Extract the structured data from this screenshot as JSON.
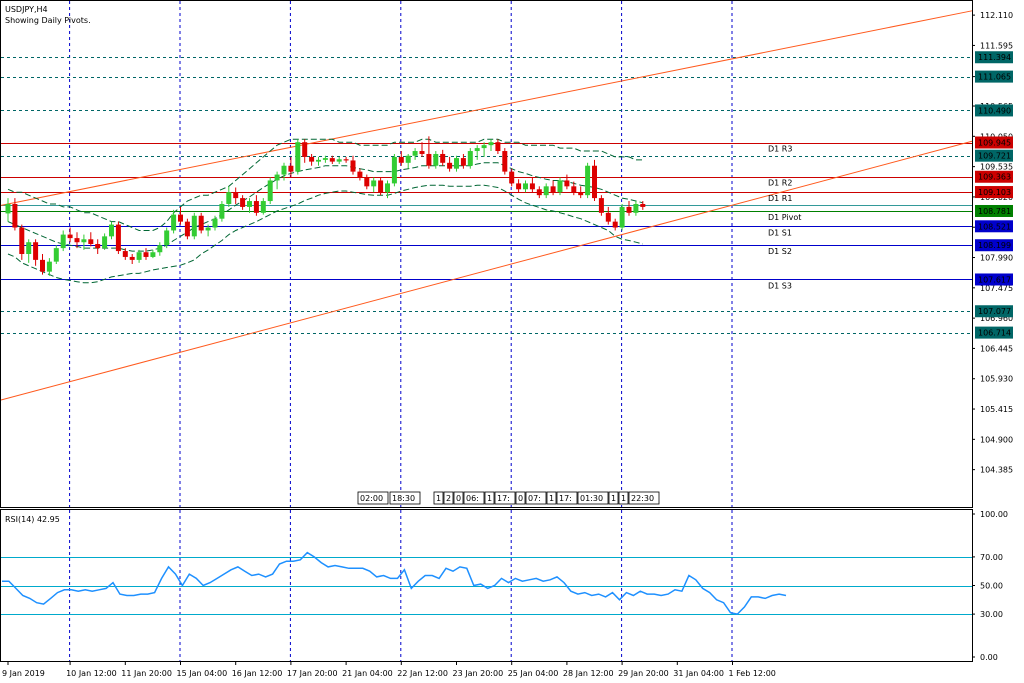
{
  "header": {
    "symbol_title": "USDJPY,H4",
    "subtitle": "Showing Daily Pivots."
  },
  "rsi_label": "RSI(14) 42.95",
  "chart_data": {
    "type": "candlestick",
    "price_axis": {
      "range": [
        103.75,
        112.35
      ],
      "tick_labels": [
        "112.110",
        "111.595",
        "111.065",
        "110.565",
        "110.050",
        "109.535",
        "109.020",
        "108.505",
        "107.990",
        "107.475",
        "106.960",
        "106.445",
        "105.930",
        "105.415",
        "104.900",
        "104.385"
      ]
    },
    "rsi_axis": {
      "range": [
        0,
        100
      ],
      "tick_labels": [
        "100.00",
        "70.00",
        "50.00",
        "30.00",
        "0.00"
      ],
      "levels": [
        70,
        50,
        30
      ]
    },
    "x_axis": {
      "tick_labels": [
        {
          "label": "9 Jan 2019",
          "bar": 0
        },
        {
          "label": "10 Jan 12:00",
          "bar": 9
        },
        {
          "label": "11 Jan 20:00",
          "bar": 17
        },
        {
          "label": "15 Jan 04:00",
          "bar": 25
        },
        {
          "label": "16 Jan 12:00",
          "bar": 33
        },
        {
          "label": "17 Jan 20:00",
          "bar": 41
        },
        {
          "label": "21 Jan 04:00",
          "bar": 49
        },
        {
          "label": "22 Jan 12:00",
          "bar": 57
        },
        {
          "label": "23 Jan 20:00",
          "bar": 65
        },
        {
          "label": "25 Jan 04:00",
          "bar": 73
        },
        {
          "label": "28 Jan 12:00",
          "bar": 81
        },
        {
          "label": "29 Jan 20:00",
          "bar": 89
        },
        {
          "label": "31 Jan 04:00",
          "bar": 97
        },
        {
          "label": "1 Feb 12:00",
          "bar": 105
        }
      ],
      "time_markers": [
        "02:00",
        "18:30",
        "1",
        "2",
        "0",
        "06:",
        "1",
        "17:",
        "0",
        "07:",
        "1",
        "17:",
        "01:30",
        "1",
        "1",
        "22:30"
      ]
    },
    "candles": [
      {
        "o": 108.74,
        "h": 109.0,
        "l": 108.6,
        "c": 108.9
      },
      {
        "o": 108.9,
        "h": 109.0,
        "l": 108.45,
        "c": 108.5
      },
      {
        "o": 108.5,
        "h": 108.55,
        "l": 107.95,
        "c": 108.05
      },
      {
        "o": 108.05,
        "h": 108.3,
        "l": 107.9,
        "c": 108.25
      },
      {
        "o": 108.25,
        "h": 108.3,
        "l": 107.85,
        "c": 107.95
      },
      {
        "o": 107.95,
        "h": 108.05,
        "l": 107.7,
        "c": 107.75
      },
      {
        "o": 107.75,
        "h": 107.98,
        "l": 107.68,
        "c": 107.92
      },
      {
        "o": 107.92,
        "h": 108.2,
        "l": 107.88,
        "c": 108.15
      },
      {
        "o": 108.15,
        "h": 108.45,
        "l": 108.1,
        "c": 108.38
      },
      {
        "o": 108.38,
        "h": 108.5,
        "l": 108.25,
        "c": 108.32
      },
      {
        "o": 108.32,
        "h": 108.42,
        "l": 108.15,
        "c": 108.25
      },
      {
        "o": 108.25,
        "h": 108.38,
        "l": 108.12,
        "c": 108.3
      },
      {
        "o": 108.3,
        "h": 108.42,
        "l": 108.18,
        "c": 108.22
      },
      {
        "o": 108.22,
        "h": 108.3,
        "l": 108.05,
        "c": 108.15
      },
      {
        "o": 108.15,
        "h": 108.4,
        "l": 108.12,
        "c": 108.35
      },
      {
        "o": 108.35,
        "h": 108.6,
        "l": 108.3,
        "c": 108.55
      },
      {
        "o": 108.55,
        "h": 108.6,
        "l": 108.05,
        "c": 108.1
      },
      {
        "o": 108.1,
        "h": 108.15,
        "l": 107.95,
        "c": 108.0
      },
      {
        "o": 108.0,
        "h": 108.05,
        "l": 107.88,
        "c": 107.95
      },
      {
        "o": 107.95,
        "h": 108.12,
        "l": 107.9,
        "c": 108.08
      },
      {
        "o": 108.08,
        "h": 108.15,
        "l": 107.95,
        "c": 108.0
      },
      {
        "o": 108.0,
        "h": 108.12,
        "l": 107.98,
        "c": 108.08
      },
      {
        "o": 108.08,
        "h": 108.25,
        "l": 108.02,
        "c": 108.2
      },
      {
        "o": 108.2,
        "h": 108.5,
        "l": 108.15,
        "c": 108.45
      },
      {
        "o": 108.45,
        "h": 108.8,
        "l": 108.4,
        "c": 108.72
      },
      {
        "o": 108.72,
        "h": 108.85,
        "l": 108.55,
        "c": 108.6
      },
      {
        "o": 108.6,
        "h": 108.65,
        "l": 108.3,
        "c": 108.35
      },
      {
        "o": 108.35,
        "h": 108.75,
        "l": 108.3,
        "c": 108.7
      },
      {
        "o": 108.7,
        "h": 108.75,
        "l": 108.4,
        "c": 108.45
      },
      {
        "o": 108.45,
        "h": 108.55,
        "l": 108.35,
        "c": 108.5
      },
      {
        "o": 108.5,
        "h": 108.7,
        "l": 108.45,
        "c": 108.65
      },
      {
        "o": 108.65,
        "h": 108.95,
        "l": 108.6,
        "c": 108.9
      },
      {
        "o": 108.9,
        "h": 109.2,
        "l": 108.85,
        "c": 109.1
      },
      {
        "o": 109.1,
        "h": 109.18,
        "l": 108.9,
        "c": 109.0
      },
      {
        "o": 109.0,
        "h": 109.05,
        "l": 108.8,
        "c": 108.85
      },
      {
        "o": 108.85,
        "h": 109.0,
        "l": 108.75,
        "c": 108.95
      },
      {
        "o": 108.95,
        "h": 109.05,
        "l": 108.7,
        "c": 108.75
      },
      {
        "o": 108.75,
        "h": 109.0,
        "l": 108.72,
        "c": 108.95
      },
      {
        "o": 108.95,
        "h": 109.35,
        "l": 108.9,
        "c": 109.3
      },
      {
        "o": 109.3,
        "h": 109.45,
        "l": 109.15,
        "c": 109.4
      },
      {
        "o": 109.4,
        "h": 109.6,
        "l": 109.3,
        "c": 109.55
      },
      {
        "o": 109.55,
        "h": 109.7,
        "l": 109.35,
        "c": 109.45
      },
      {
        "o": 109.45,
        "h": 110.0,
        "l": 109.4,
        "c": 109.95
      },
      {
        "o": 109.95,
        "h": 110.0,
        "l": 109.6,
        "c": 109.7
      },
      {
        "o": 109.7,
        "h": 109.75,
        "l": 109.55,
        "c": 109.62
      },
      {
        "o": 109.62,
        "h": 109.7,
        "l": 109.55,
        "c": 109.65
      },
      {
        "o": 109.65,
        "h": 109.72,
        "l": 109.6,
        "c": 109.68
      },
      {
        "o": 109.68,
        "h": 109.72,
        "l": 109.58,
        "c": 109.62
      },
      {
        "o": 109.62,
        "h": 109.7,
        "l": 109.58,
        "c": 109.66
      },
      {
        "o": 109.66,
        "h": 109.7,
        "l": 109.6,
        "c": 109.64
      },
      {
        "o": 109.64,
        "h": 109.72,
        "l": 109.4,
        "c": 109.45
      },
      {
        "o": 109.45,
        "h": 109.5,
        "l": 109.3,
        "c": 109.35
      },
      {
        "o": 109.35,
        "h": 109.4,
        "l": 109.15,
        "c": 109.2
      },
      {
        "o": 109.2,
        "h": 109.35,
        "l": 109.1,
        "c": 109.3
      },
      {
        "o": 109.3,
        "h": 109.35,
        "l": 109.05,
        "c": 109.1
      },
      {
        "o": 109.1,
        "h": 109.3,
        "l": 109.0,
        "c": 109.25
      },
      {
        "o": 109.25,
        "h": 109.75,
        "l": 109.2,
        "c": 109.7
      },
      {
        "o": 109.7,
        "h": 109.8,
        "l": 109.55,
        "c": 109.6
      },
      {
        "o": 109.6,
        "h": 109.75,
        "l": 109.5,
        "c": 109.72
      },
      {
        "o": 109.72,
        "h": 109.85,
        "l": 109.65,
        "c": 109.8
      },
      {
        "o": 109.8,
        "h": 109.95,
        "l": 109.7,
        "c": 109.75
      },
      {
        "o": 109.75,
        "h": 110.05,
        "l": 109.5,
        "c": 109.55
      },
      {
        "o": 109.55,
        "h": 109.8,
        "l": 109.5,
        "c": 109.75
      },
      {
        "o": 109.75,
        "h": 109.82,
        "l": 109.55,
        "c": 109.6
      },
      {
        "o": 109.6,
        "h": 109.7,
        "l": 109.45,
        "c": 109.5
      },
      {
        "o": 109.5,
        "h": 109.72,
        "l": 109.45,
        "c": 109.68
      },
      {
        "o": 109.68,
        "h": 109.75,
        "l": 109.5,
        "c": 109.55
      },
      {
        "o": 109.55,
        "h": 109.85,
        "l": 109.5,
        "c": 109.8
      },
      {
        "o": 109.8,
        "h": 109.9,
        "l": 109.65,
        "c": 109.85
      },
      {
        "o": 109.85,
        "h": 109.95,
        "l": 109.7,
        "c": 109.9
      },
      {
        "o": 109.9,
        "h": 110.0,
        "l": 109.8,
        "c": 109.95
      },
      {
        "o": 109.95,
        "h": 110.0,
        "l": 109.75,
        "c": 109.8
      },
      {
        "o": 109.8,
        "h": 109.85,
        "l": 109.4,
        "c": 109.45
      },
      {
        "o": 109.45,
        "h": 109.5,
        "l": 109.2,
        "c": 109.25
      },
      {
        "o": 109.25,
        "h": 109.32,
        "l": 109.1,
        "c": 109.15
      },
      {
        "o": 109.15,
        "h": 109.3,
        "l": 109.1,
        "c": 109.25
      },
      {
        "o": 109.25,
        "h": 109.35,
        "l": 109.1,
        "c": 109.15
      },
      {
        "o": 109.15,
        "h": 109.2,
        "l": 109.0,
        "c": 109.05
      },
      {
        "o": 109.05,
        "h": 109.25,
        "l": 109.0,
        "c": 109.2
      },
      {
        "o": 109.2,
        "h": 109.3,
        "l": 109.05,
        "c": 109.1
      },
      {
        "o": 109.1,
        "h": 109.35,
        "l": 109.05,
        "c": 109.3
      },
      {
        "o": 109.3,
        "h": 109.4,
        "l": 109.15,
        "c": 109.2
      },
      {
        "o": 109.2,
        "h": 109.28,
        "l": 109.05,
        "c": 109.1
      },
      {
        "o": 109.1,
        "h": 109.2,
        "l": 109.0,
        "c": 109.05
      },
      {
        "o": 109.05,
        "h": 109.6,
        "l": 109.0,
        "c": 109.55
      },
      {
        "o": 109.55,
        "h": 109.65,
        "l": 108.95,
        "c": 109.0
      },
      {
        "o": 109.0,
        "h": 109.05,
        "l": 108.7,
        "c": 108.75
      },
      {
        "o": 108.75,
        "h": 108.85,
        "l": 108.55,
        "c": 108.6
      },
      {
        "o": 108.6,
        "h": 108.65,
        "l": 108.45,
        "c": 108.5
      },
      {
        "o": 108.5,
        "h": 108.9,
        "l": 108.45,
        "c": 108.85
      },
      {
        "o": 108.85,
        "h": 108.95,
        "l": 108.7,
        "c": 108.75
      },
      {
        "o": 108.75,
        "h": 108.95,
        "l": 108.7,
        "c": 108.9
      },
      {
        "o": 108.9,
        "h": 108.95,
        "l": 108.8,
        "c": 108.85
      }
    ],
    "bollinger": {
      "upper": [
        109.15,
        109.1,
        109.1,
        109.05,
        109.0,
        108.95,
        108.9,
        108.9,
        108.85,
        108.85,
        108.8,
        108.75,
        108.75,
        108.7,
        108.65,
        108.6,
        108.6,
        108.55,
        108.5,
        108.45,
        108.45,
        108.45,
        108.5,
        108.6,
        108.75,
        108.85,
        108.95,
        109.0,
        109.05,
        109.05,
        109.1,
        109.15,
        109.2,
        109.3,
        109.4,
        109.5,
        109.6,
        109.7,
        109.8,
        109.9,
        109.95,
        110.0,
        110.0,
        110.0,
        110.0,
        110.0,
        110.0,
        110.0,
        109.95,
        109.95,
        109.95,
        109.9,
        109.9,
        109.9,
        109.9,
        109.9,
        109.95,
        109.95,
        109.95,
        109.95,
        110.0,
        110.0,
        109.95,
        109.95,
        109.95,
        109.95,
        109.95,
        109.95,
        109.95,
        110.0,
        110.0,
        110.0,
        109.95,
        109.95,
        109.95,
        109.9,
        109.9,
        109.9,
        109.9,
        109.9,
        109.85,
        109.85,
        109.85,
        109.8,
        109.8,
        109.8,
        109.8,
        109.75,
        109.7,
        109.7,
        109.7,
        109.65,
        109.65
      ],
      "mid": [
        108.6,
        108.55,
        108.5,
        108.45,
        108.4,
        108.35,
        108.3,
        108.25,
        108.22,
        108.2,
        108.18,
        108.15,
        108.15,
        108.15,
        108.15,
        108.15,
        108.15,
        108.12,
        108.1,
        108.1,
        108.1,
        108.12,
        108.15,
        108.2,
        108.28,
        108.35,
        108.42,
        108.5,
        108.55,
        108.6,
        108.65,
        108.72,
        108.8,
        108.88,
        108.95,
        109.02,
        109.1,
        109.18,
        109.25,
        109.32,
        109.38,
        109.42,
        109.45,
        109.48,
        109.5,
        109.52,
        109.55,
        109.55,
        109.55,
        109.55,
        109.52,
        109.5,
        109.48,
        109.45,
        109.45,
        109.45,
        109.45,
        109.48,
        109.5,
        109.52,
        109.55,
        109.55,
        109.55,
        109.55,
        109.55,
        109.55,
        109.55,
        109.55,
        109.58,
        109.6,
        109.6,
        109.6,
        109.55,
        109.5,
        109.45,
        109.42,
        109.38,
        109.35,
        109.32,
        109.3,
        109.3,
        109.28,
        109.25,
        109.22,
        109.2,
        109.18,
        109.15,
        109.1,
        109.05,
        109.0,
        108.98,
        108.95,
        108.92
      ],
      "lower": [
        108.05,
        108.0,
        107.9,
        107.85,
        107.8,
        107.75,
        107.7,
        107.65,
        107.62,
        107.6,
        107.58,
        107.56,
        107.56,
        107.58,
        107.62,
        107.66,
        107.68,
        107.7,
        107.72,
        107.72,
        107.75,
        107.78,
        107.8,
        107.82,
        107.84,
        107.86,
        107.9,
        107.95,
        108.05,
        108.12,
        108.2,
        108.28,
        108.38,
        108.45,
        108.5,
        108.55,
        108.6,
        108.66,
        108.72,
        108.78,
        108.82,
        108.86,
        108.9,
        108.96,
        109.0,
        109.05,
        109.08,
        109.1,
        109.12,
        109.12,
        109.1,
        109.08,
        109.06,
        109.05,
        109.05,
        109.05,
        109.08,
        109.12,
        109.15,
        109.18,
        109.2,
        109.22,
        109.22,
        109.22,
        109.2,
        109.2,
        109.2,
        109.2,
        109.22,
        109.22,
        109.2,
        109.18,
        109.12,
        109.05,
        108.98,
        108.92,
        108.88,
        108.84,
        108.8,
        108.78,
        108.75,
        108.72,
        108.68,
        108.65,
        108.6,
        108.55,
        108.5,
        108.45,
        108.35,
        108.3,
        108.28,
        108.25,
        108.22
      ]
    },
    "trendlines": [
      {
        "name": "upper-channel",
        "from": {
          "bar": 0,
          "price": 108.9
        },
        "to": {
          "bar": 120,
          "price": 111.72
        }
      },
      {
        "name": "lower-channel",
        "from": {
          "bar": 0,
          "price": 105.6
        },
        "to": {
          "bar": 120,
          "price": 109.35
        }
      }
    ],
    "pivots": [
      {
        "label": "D1  R3",
        "price": 109.945,
        "color": "#cc0000"
      },
      {
        "label": "D1  R2",
        "price": 109.363,
        "color": "#cc0000"
      },
      {
        "label": "D1  R1",
        "price": 109.103,
        "color": "#cc0000"
      },
      {
        "label": "D1  Pivot",
        "price": 108.781,
        "color": "#008000"
      },
      {
        "label": "D1  S1",
        "price": 108.521,
        "color": "#0000cc"
      },
      {
        "label": "D1  S2",
        "price": 108.199,
        "color": "#0000cc"
      },
      {
        "label": "D1  S3",
        "price": 107.617,
        "color": "#0000cc"
      }
    ],
    "dashed_levels": [
      111.394,
      111.065,
      110.49,
      109.721,
      107.077,
      106.714
    ],
    "extra_teal_line": 108.88,
    "price_labels": [
      {
        "price": 111.394,
        "text": "111.394",
        "bg": "#006666"
      },
      {
        "price": 111.065,
        "text": "111.065",
        "bg": "#006666"
      },
      {
        "price": 110.49,
        "text": "110.490",
        "bg": "#006666"
      },
      {
        "price": 109.945,
        "text": "109.945",
        "bg": "#cc0000"
      },
      {
        "price": 109.721,
        "text": "109.721",
        "bg": "#006666"
      },
      {
        "price": 109.363,
        "text": "109.363",
        "bg": "#cc0000"
      },
      {
        "price": 109.103,
        "text": "109.103",
        "bg": "#cc0000"
      },
      {
        "price": 108.781,
        "text": "108.781",
        "bg": "#008000"
      },
      {
        "price": 108.521,
        "text": "108.521",
        "bg": "#0000cc"
      },
      {
        "price": 108.199,
        "text": "108.199",
        "bg": "#0000cc"
      },
      {
        "price": 107.617,
        "text": "107.617",
        "bg": "#0000cc"
      },
      {
        "price": 107.077,
        "text": "107.077",
        "bg": "#006666"
      },
      {
        "price": 106.714,
        "text": "106.714",
        "bg": "#006666"
      }
    ],
    "rsi_values": [
      53,
      53,
      48,
      43,
      41,
      38,
      37,
      41,
      45,
      47,
      47,
      46,
      47,
      46,
      47,
      48,
      52,
      44,
      43,
      43,
      44,
      44,
      45,
      55,
      63,
      58,
      50,
      58,
      55,
      50,
      52,
      55,
      58,
      61,
      63,
      60,
      57,
      58,
      56,
      58,
      65,
      67,
      67,
      68,
      73,
      70,
      66,
      63,
      64,
      63,
      62,
      62,
      62,
      60,
      56,
      57,
      55,
      55,
      61,
      48,
      53,
      57,
      57,
      55,
      62,
      60,
      63,
      62,
      50,
      51,
      48,
      50,
      55,
      52,
      55,
      53,
      54,
      55,
      53,
      54,
      56,
      52,
      46,
      44,
      45,
      43,
      44,
      42,
      45,
      40,
      45,
      43,
      46,
      44,
      44,
      43,
      44,
      47,
      46,
      57,
      54,
      48,
      45,
      40,
      38,
      31,
      30,
      35,
      42,
      42,
      41,
      43,
      44,
      43
    ],
    "colors": {
      "bull": "#33cc33",
      "bear": "#dd0000",
      "trendline": "#ff5a1e",
      "vgrid": "#0000cc",
      "dashed_level": "#006666",
      "rsi_line": "#1e90ff",
      "rsi_level": "#00aacc",
      "bollinger": "#006633"
    }
  }
}
